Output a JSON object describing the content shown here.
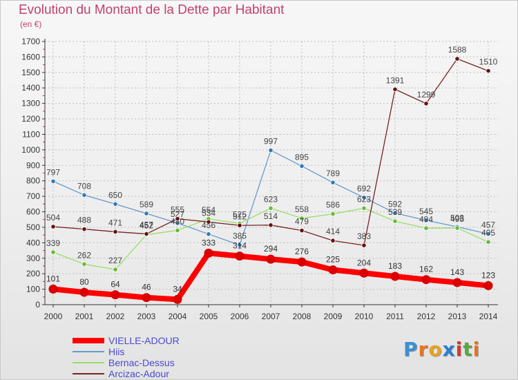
{
  "title": "Evolution du Montant de la Dette par Habitant",
  "subtitle": "(en €)",
  "logo": {
    "text": "Proxiti",
    "letters": [
      {
        "ch": "P",
        "color": "#3a8fd6"
      },
      {
        "ch": "r",
        "color": "#e8741e"
      },
      {
        "ch": "o",
        "color": "#e8a21e"
      },
      {
        "ch": "x",
        "color": "#2d7fd0"
      },
      {
        "ch": "i",
        "color": "#d23a3a"
      },
      {
        "ch": "t",
        "color": "#57a845"
      },
      {
        "ch": "i",
        "color": "#e8741e"
      }
    ]
  },
  "chart_data": {
    "type": "line",
    "x": [
      2000,
      2001,
      2002,
      2003,
      2004,
      2005,
      2006,
      2007,
      2008,
      2009,
      2010,
      2011,
      2012,
      2013,
      2014
    ],
    "ylim": [
      0,
      1700
    ],
    "yticks": [
      0,
      100,
      200,
      300,
      400,
      500,
      600,
      700,
      800,
      900,
      1000,
      1100,
      1200,
      1300,
      1400,
      1500,
      1600,
      1700
    ],
    "grid": true,
    "legend_position": "bottom-left",
    "series": [
      {
        "name": "VIELLE-ADOUR",
        "color": "#ff0000",
        "marker_color": "#dd0000",
        "label_color": "#333333",
        "values": [
          101,
          80,
          64,
          46,
          34,
          333,
          314,
          294,
          276,
          225,
          204,
          183,
          162,
          143,
          123
        ]
      },
      {
        "name": "Hiis",
        "color": "#6699cc",
        "marker_color": "#3377bb",
        "label_color": "#444444",
        "values": [
          797,
          708,
          650,
          589,
          527,
          456,
          385,
          997,
          895,
          789,
          692,
          592,
          545,
          503,
          457
        ]
      },
      {
        "name": "Bernac-Dessus",
        "color": "#99dd66",
        "marker_color": "#66bb33",
        "label_color": "#444444",
        "values": [
          339,
          262,
          227,
          452,
          480,
          554,
          525,
          623,
          558,
          586,
          623,
          539,
          494,
          495,
          405
        ]
      },
      {
        "name": "Arcizac-Adour",
        "color": "#772222",
        "marker_color": "#661111",
        "label_color": "#444444",
        "values": [
          504,
          488,
          471,
          457,
          555,
          534,
          512,
          514,
          479,
          414,
          383,
          1391,
          1299,
          1588,
          1510
        ]
      }
    ]
  }
}
